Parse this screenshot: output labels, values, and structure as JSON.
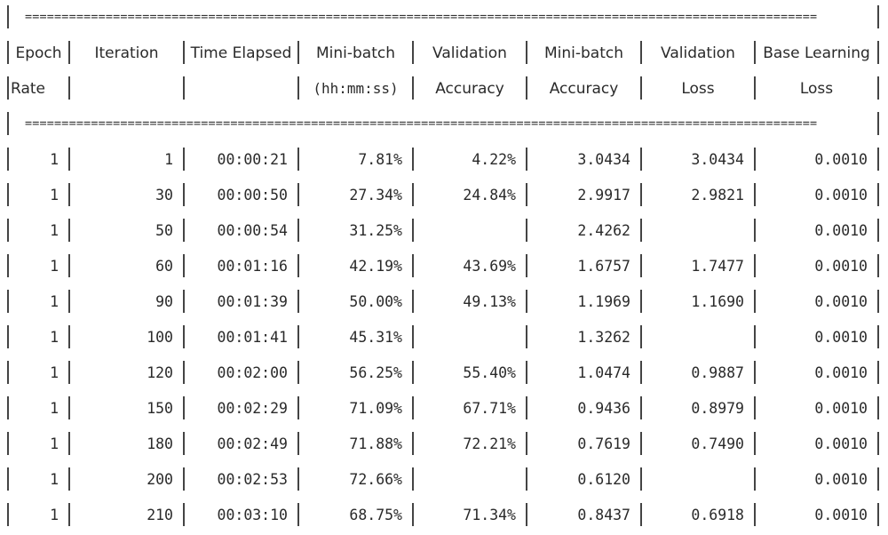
{
  "separator": "============================================================================================================",
  "header_rows": [
    [
      "Epoch",
      "Iteration",
      "Time Elapsed",
      "Mini-batch",
      "Validation",
      "Mini-batch",
      "Validation",
      "Base Learning"
    ],
    [
      "Rate",
      "",
      "",
      "(hh:mm:ss)",
      "Accuracy",
      "Accuracy",
      "Loss",
      "Loss"
    ]
  ],
  "rows": [
    [
      "1",
      "1",
      "00:00:21",
      "7.81%",
      "4.22%",
      "3.0434",
      "3.0434",
      "0.0010"
    ],
    [
      "1",
      "30",
      "00:00:50",
      "27.34%",
      "24.84%",
      "2.9917",
      "2.9821",
      "0.0010"
    ],
    [
      "1",
      "50",
      "00:00:54",
      "31.25%",
      "",
      "2.4262",
      "",
      "0.0010"
    ],
    [
      "1",
      "60",
      "00:01:16",
      "42.19%",
      "43.69%",
      "1.6757",
      "1.7477",
      "0.0010"
    ],
    [
      "1",
      "90",
      "00:01:39",
      "50.00%",
      "49.13%",
      "1.1969",
      "1.1690",
      "0.0010"
    ],
    [
      "1",
      "100",
      "00:01:41",
      "45.31%",
      "",
      "1.3262",
      "",
      "0.0010"
    ],
    [
      "1",
      "120",
      "00:02:00",
      "56.25%",
      "55.40%",
      "1.0474",
      "0.9887",
      "0.0010"
    ],
    [
      "1",
      "150",
      "00:02:29",
      "71.09%",
      "67.71%",
      "0.9436",
      "0.8979",
      "0.0010"
    ],
    [
      "1",
      "180",
      "00:02:49",
      "71.88%",
      "72.21%",
      "0.7619",
      "0.7490",
      "0.0010"
    ],
    [
      "1",
      "200",
      "00:02:53",
      "72.66%",
      "",
      "0.6120",
      "",
      "0.0010"
    ],
    [
      "1",
      "210",
      "00:03:10",
      "68.75%",
      "71.34%",
      "0.8437",
      "0.6918",
      "0.0010"
    ]
  ]
}
